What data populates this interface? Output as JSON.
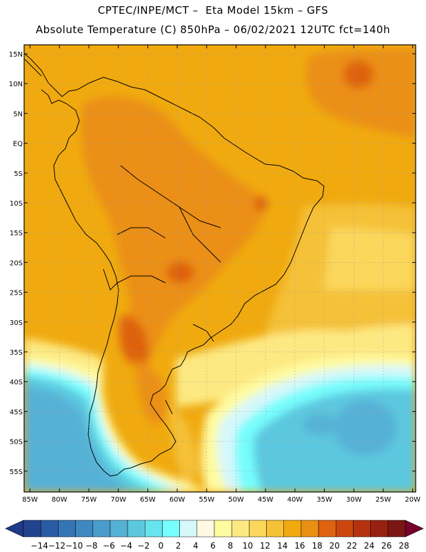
{
  "header": {
    "line1": "CPTEC/INPE/MCT –  Eta Model 15km – GFS",
    "line2": "Absolute Temperature (C) 850hPa – 06/02/2021 12UTC fct=140h"
  },
  "map": {
    "lat_labels": [
      "15N",
      "10N",
      "5N",
      "EQ",
      "5S",
      "10S",
      "15S",
      "20S",
      "25S",
      "30S",
      "35S",
      "40S",
      "45S",
      "50S",
      "55S"
    ],
    "lon_labels": [
      "85W",
      "80W",
      "75W",
      "70W",
      "65W",
      "60W",
      "55W",
      "50W",
      "45W",
      "40W",
      "35W",
      "30W",
      "25W",
      "20W"
    ],
    "extent": {
      "lon_min": -86,
      "lon_max": -19.5,
      "lat_min": -58.5,
      "lat_max": 16.5
    }
  },
  "colorbar": {
    "labels": [
      "-14",
      "-12",
      "-10",
      "-8",
      "-6",
      "-4",
      "-2",
      "0",
      "2",
      "4",
      "6",
      "8",
      "10",
      "12",
      "14",
      "16",
      "18",
      "20",
      "22",
      "24",
      "26",
      "28"
    ],
    "colors": [
      "#22448f",
      "#2a5ca5",
      "#3575b6",
      "#4088c0",
      "#4a9ccb",
      "#56b1d6",
      "#5cc8df",
      "#66e4ef",
      "#77fdfd",
      "#d6f8fb",
      "#fff9e4",
      "#fffba0",
      "#fde982",
      "#fbd75c",
      "#f5c137",
      "#f0aa0f",
      "#eb8f14",
      "#de6210",
      "#cb470e",
      "#b4330e",
      "#972210",
      "#7a1714"
    ],
    "left_arrow_color": "#1e3a8a",
    "right_arrow_color": "#78002a"
  }
}
